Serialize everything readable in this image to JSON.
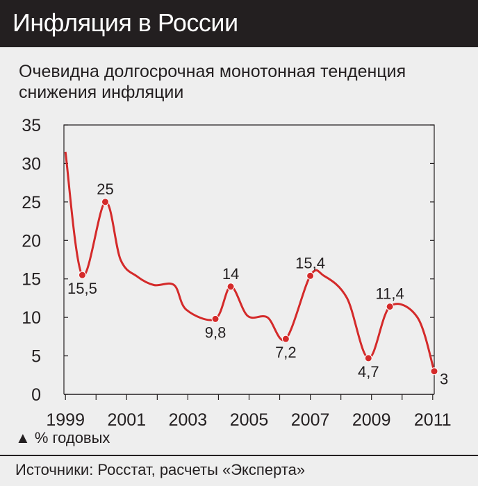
{
  "header": {
    "title": "Инфляция в России"
  },
  "subtitle": "Очевидна долгосрочная монотонная тенденция снижения инфляции",
  "unit_note": "▲ % годовых",
  "source": "Источники: Росстат, расчеты «Эксперта»",
  "colors": {
    "line": "#d42a2a",
    "header_bg": "#231f20",
    "background": "#eeeeee",
    "grid": "#231f20"
  },
  "chart_data": {
    "type": "line",
    "title": "Инфляция в России",
    "subtitle": "Очевидна долгосрочная монотонная тенденция снижения инфляции",
    "ylabel": "% годовых",
    "ylim": [
      0,
      35
    ],
    "yticks": [
      0,
      5,
      10,
      15,
      20,
      25,
      30,
      35
    ],
    "xlim": [
      1998.95,
      2011.05
    ],
    "xtick_labels": [
      "1999",
      "2001",
      "2003",
      "2005",
      "2007",
      "2009",
      "2011"
    ],
    "xtick_values": [
      1999,
      2001,
      2003,
      2005,
      2007,
      2009,
      2011
    ],
    "grid": false,
    "series": [
      {
        "x": [
          1999.0,
          1999.55,
          2000.3,
          2000.8,
          2001.35,
          2001.9,
          2002.55,
          2002.95,
          2003.9,
          2004.4,
          2004.95,
          2005.6,
          2006.2,
          2007.0,
          2007.45,
          2008.2,
          2008.9,
          2009.6,
          2010.5,
          2011.05
        ],
        "values": [
          31.5,
          15.5,
          25.0,
          17.5,
          15.3,
          14.2,
          14.2,
          11.0,
          9.8,
          14.0,
          10.2,
          10.0,
          7.2,
          15.4,
          15.4,
          12.5,
          4.7,
          11.4,
          10.0,
          3.0
        ]
      }
    ],
    "marked_points": [
      {
        "x": 1999.55,
        "y": 15.5,
        "label": "15,5",
        "label_pos": "below"
      },
      {
        "x": 2000.3,
        "y": 25.0,
        "label": "25",
        "label_pos": "above"
      },
      {
        "x": 2003.9,
        "y": 9.8,
        "label": "9,8",
        "label_pos": "below"
      },
      {
        "x": 2004.4,
        "y": 14.0,
        "label": "14",
        "label_pos": "above"
      },
      {
        "x": 2006.2,
        "y": 7.2,
        "label": "7,2",
        "label_pos": "below"
      },
      {
        "x": 2007.0,
        "y": 15.4,
        "label": "15,4",
        "label_pos": "above"
      },
      {
        "x": 2008.9,
        "y": 4.7,
        "label": "4,7",
        "label_pos": "below"
      },
      {
        "x": 2009.6,
        "y": 11.4,
        "label": "11,4",
        "label_pos": "above"
      },
      {
        "x": 2011.05,
        "y": 3.0,
        "label": "3",
        "label_pos": "right"
      }
    ]
  }
}
